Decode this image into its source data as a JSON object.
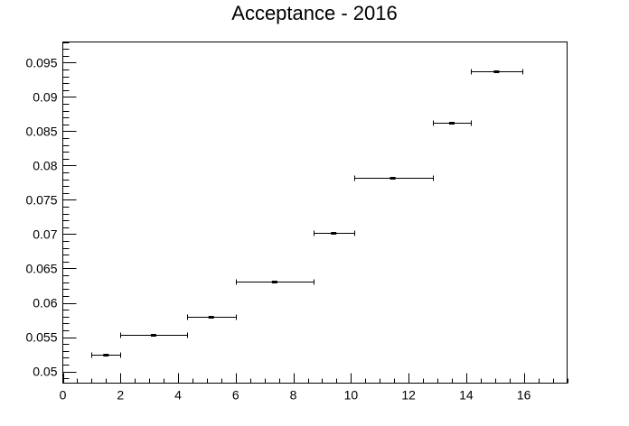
{
  "chart_data": {
    "type": "scatter",
    "title": "Acceptance - 2016",
    "xlabel": "",
    "ylabel": "",
    "xlim": [
      0,
      17.5
    ],
    "ylim": [
      0.0483,
      0.098
    ],
    "grid": false,
    "legend": "none",
    "x_ticks": [
      "0",
      "2",
      "4",
      "6",
      "8",
      "10",
      "12",
      "14",
      "16"
    ],
    "y_ticks": [
      "0.05",
      "0.055",
      "0.06",
      "0.065",
      "0.07",
      "0.075",
      "0.08",
      "0.085",
      "0.09",
      "0.095"
    ],
    "series": [
      {
        "points": [
          {
            "x": 1.5,
            "y": 0.0524,
            "xlow": 1.0,
            "xhigh": 2.0
          },
          {
            "x": 3.15,
            "y": 0.0554,
            "xlow": 2.0,
            "xhigh": 4.3
          },
          {
            "x": 5.15,
            "y": 0.0579,
            "xlow": 4.3,
            "xhigh": 6.0
          },
          {
            "x": 7.35,
            "y": 0.0631,
            "xlow": 6.0,
            "xhigh": 8.7
          },
          {
            "x": 9.4,
            "y": 0.0702,
            "xlow": 8.7,
            "xhigh": 10.1
          },
          {
            "x": 11.45,
            "y": 0.0782,
            "xlow": 10.1,
            "xhigh": 12.85
          },
          {
            "x": 13.5,
            "y": 0.0862,
            "xlow": 12.85,
            "xhigh": 14.15
          },
          {
            "x": 15.05,
            "y": 0.0937,
            "xlow": 14.15,
            "xhigh": 15.95
          }
        ]
      }
    ]
  }
}
